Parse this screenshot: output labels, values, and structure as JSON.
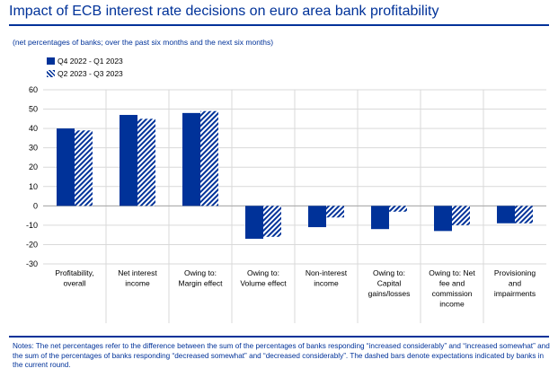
{
  "title": "Impact of ECB interest rate decisions on euro area bank profitability",
  "subtitle": "(net percentages of banks; over the past six months and the next six months)",
  "notes": "Notes: The net percentages refer to the difference between the sum of the percentages of banks responding “increased considerably” and “increased somewhat” and the sum of the percentages of banks responding “decreased somewhat” and “decreased considerably”. The dashed bars denote expectations indicated by banks in the current round.",
  "colors": {
    "accent": "#003299",
    "grid": "#d9d9d9"
  },
  "chart_data": {
    "type": "bar",
    "categories": [
      [
        "Profitability,",
        "overall"
      ],
      [
        "Net interest",
        "income"
      ],
      [
        "Owing to:",
        "Margin effect"
      ],
      [
        "Owing to:",
        "Volume effect"
      ],
      [
        "Non-interest",
        "income"
      ],
      [
        "Owing to:",
        "Capital",
        "gains/losses"
      ],
      [
        "Owing to: Net",
        "fee and",
        "commission",
        "income"
      ],
      [
        "Provisioning",
        "and",
        "impairments"
      ]
    ],
    "series": [
      {
        "name": "Q4 2022 - Q1 2023",
        "style": "solid",
        "values": [
          40,
          47,
          48,
          -17,
          -11,
          -12,
          -13,
          -9
        ]
      },
      {
        "name": "Q2 2023 - Q3 2023",
        "style": "hatched",
        "values": [
          39,
          45,
          49,
          -16,
          -6,
          -3,
          -10,
          -9
        ]
      }
    ],
    "ylim": [
      -30,
      60
    ],
    "yticks": [
      -30,
      -20,
      -10,
      0,
      10,
      20,
      30,
      40,
      50,
      60
    ],
    "grid": "horizontal",
    "legend": "top-left"
  }
}
